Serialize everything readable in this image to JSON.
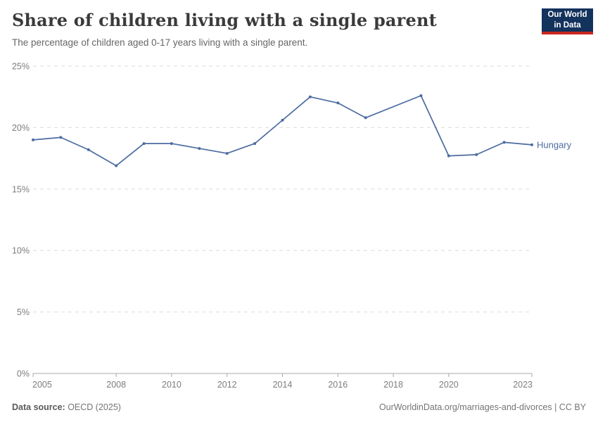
{
  "header": {
    "title": "Share of children living with a single parent",
    "subtitle": "The percentage of children aged 0-17 years living with a single parent.",
    "logo": {
      "line1": "Our World",
      "line2": "in Data"
    }
  },
  "chart_data": {
    "type": "line",
    "title": "Share of children living with a single parent",
    "subtitle": "The percentage of children aged 0-17 years living with a single parent.",
    "x": [
      2005,
      2006,
      2007,
      2008,
      2009,
      2010,
      2011,
      2012,
      2013,
      2014,
      2015,
      2016,
      2017,
      2018,
      2019,
      2020,
      2021,
      2022,
      2023
    ],
    "series": [
      {
        "name": "Hungary",
        "values": [
          19.0,
          19.2,
          18.2,
          16.9,
          18.7,
          18.7,
          18.3,
          17.9,
          18.7,
          20.6,
          22.5,
          22.0,
          20.8,
          null,
          22.6,
          17.7,
          17.8,
          18.8,
          18.6
        ]
      }
    ],
    "missing_years": [
      2018
    ],
    "x_ticks": [
      2005,
      2008,
      2010,
      2012,
      2014,
      2016,
      2018,
      2020,
      2023
    ],
    "y_ticks": [
      0,
      5,
      10,
      15,
      20,
      25
    ],
    "y_unit": "%",
    "xlim": [
      2005,
      2023
    ],
    "ylim": [
      0,
      25
    ],
    "grid": "horizontal-dashed",
    "legend": "inline-end-label"
  },
  "footer": {
    "source_label": "Data source:",
    "source_value": " OECD (2025)",
    "right_link": "OurWorldinData.org/marriages-and-divorces",
    "right_suffix": " | CC BY"
  },
  "colors": {
    "line": "#4C6CA0",
    "grid": "#DCDCDC",
    "axis": "#A8A8A8",
    "tick_label": "#7d7d7d",
    "series_label": "#4C6CA0",
    "logo_bg": "#13325C",
    "logo_accent": "#C8271E"
  }
}
